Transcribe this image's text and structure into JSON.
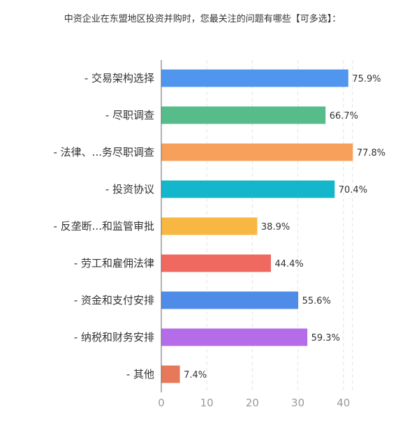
{
  "chart_data": {
    "type": "bar",
    "orientation": "horizontal",
    "title": "中资企业在东盟地区投资并购时，您最关注的问题有哪些【可多选】：",
    "categories": [
      "- 交易架构选择",
      "- 尽职调查",
      "- 法律、...务尽职调查",
      "- 投资协议",
      "- 反垄断...和监管审批",
      "- 劳工和雇佣法律",
      "- 资金和支付安排",
      "- 纳税和财务安排",
      "- 其他"
    ],
    "values": [
      41,
      36,
      42,
      38,
      21,
      24,
      30,
      32,
      4
    ],
    "value_labels": [
      "75.9%",
      "66.7%",
      "77.8%",
      "70.4%",
      "38.9%",
      "44.4%",
      "55.6%",
      "59.3%",
      "7.4%"
    ],
    "colors": [
      "#5196ee",
      "#56bd8a",
      "#f6a05b",
      "#13b6ca",
      "#f7b742",
      "#f06960",
      "#4f8ce7",
      "#b46ce9",
      "#e7785a"
    ],
    "xticks": [
      "0",
      "10",
      "20",
      "30",
      "40"
    ],
    "xlim": [
      0,
      42
    ],
    "xlabel": "",
    "ylabel": "",
    "grid": "vertical dashed"
  }
}
